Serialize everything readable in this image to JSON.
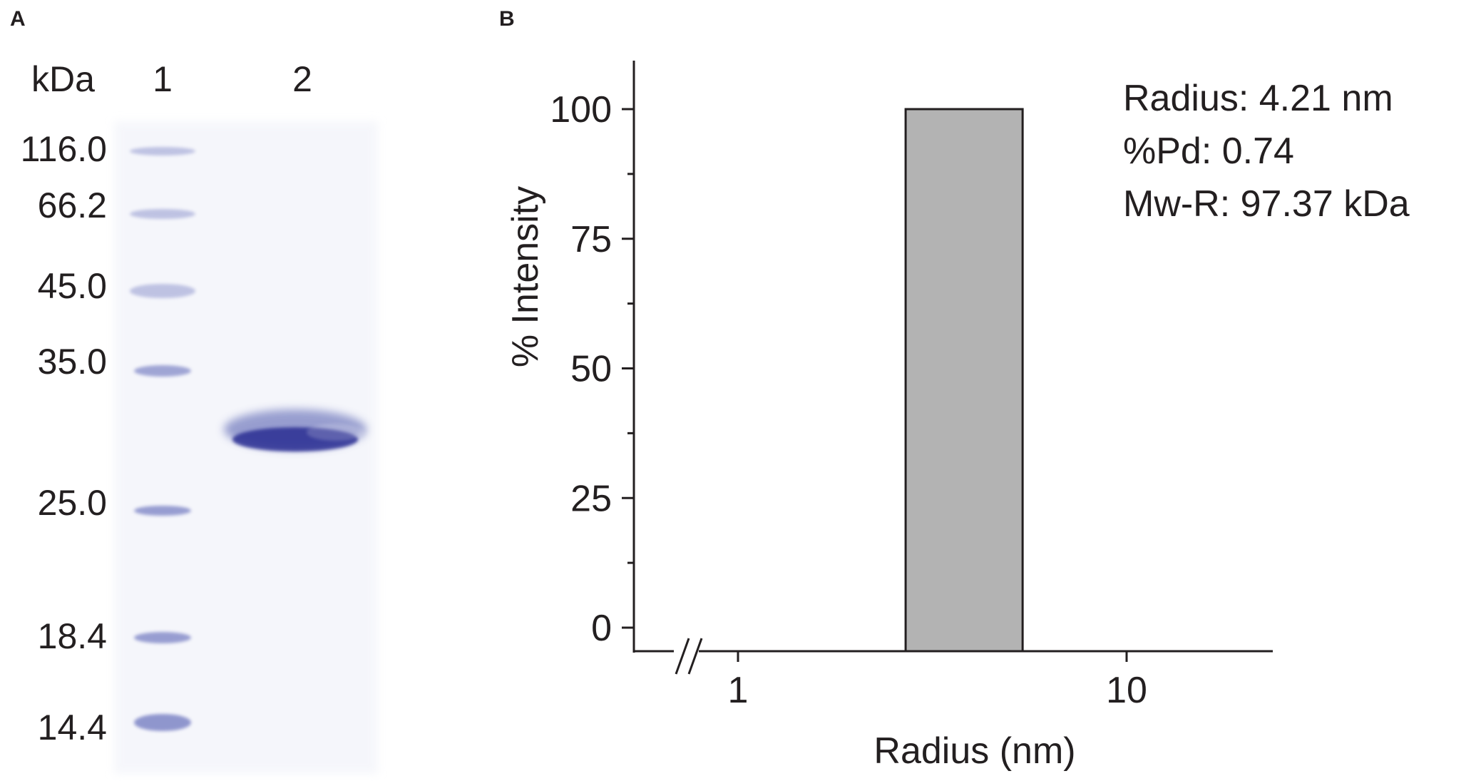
{
  "panel_a": {
    "label": "A",
    "unit_label": "kDa",
    "lane_labels": [
      "1",
      "2"
    ],
    "marker_kDa": [
      "116.0",
      "66.2",
      "45.0",
      "35.0",
      "25.0",
      "18.4",
      "14.4"
    ],
    "band_color": "#2b2f93",
    "marker_color": "#5a63b6"
  },
  "panel_b": {
    "label": "B",
    "annotations": [
      "Radius: 4.21 nm",
      "%Pd: 0.74",
      "Mw-R: 97.37 kDa"
    ]
  },
  "chart_data": {
    "type": "bar",
    "xlabel": "Radius (nm)",
    "ylabel": "% Intensity",
    "x_scale": "log",
    "x_axis_break": true,
    "x_ticks": [
      "1",
      "10"
    ],
    "y_ticks": [
      "0",
      "25",
      "50",
      "75",
      "100"
    ],
    "ylim": [
      -5,
      108
    ],
    "bars": [
      {
        "x_start": 2.7,
        "x_end": 5.4,
        "value": 100
      }
    ],
    "bar_color": "#b3b3b3",
    "grid": false
  }
}
